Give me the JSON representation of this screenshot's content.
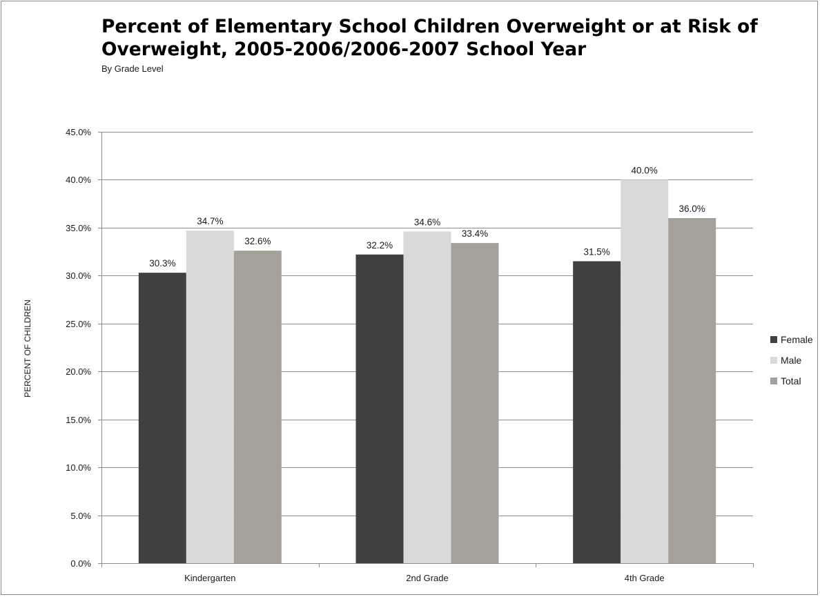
{
  "chart_data": {
    "type": "bar",
    "title": "Percent of Elementary School Children Overweight or at Risk of Overweight, 2005-2006/2006-2007 School Year",
    "subtitle": "By Grade Level",
    "ylabel": "PERCENT OF CHILDREN",
    "xlabel": "",
    "categories": [
      "Kindergarten",
      "2nd Grade",
      "4th Grade"
    ],
    "series": [
      {
        "name": "Female",
        "values": [
          30.3,
          32.2,
          31.5
        ],
        "labels": [
          "30.3%",
          "32.2%",
          "31.5%"
        ],
        "color": "#404040"
      },
      {
        "name": "Male",
        "values": [
          34.7,
          34.6,
          40.0
        ],
        "labels": [
          "34.7%",
          "34.6%",
          "40.0%"
        ],
        "color": "#d9d9d9"
      },
      {
        "name": "Total",
        "values": [
          32.6,
          33.4,
          36.0
        ],
        "labels": [
          "32.6%",
          "33.4%",
          "36.0%"
        ],
        "color": "#a5a19a"
      }
    ],
    "ylim": [
      0,
      45
    ],
    "yticks": [
      0,
      5,
      10,
      15,
      20,
      25,
      30,
      35,
      40,
      45
    ],
    "ytick_labels": [
      "0.0%",
      "5.0%",
      "10.0%",
      "15.0%",
      "20.0%",
      "25.0%",
      "30.0%",
      "35.0%",
      "40.0%",
      "45.0%"
    ],
    "grid": true,
    "legend_position": "right"
  }
}
